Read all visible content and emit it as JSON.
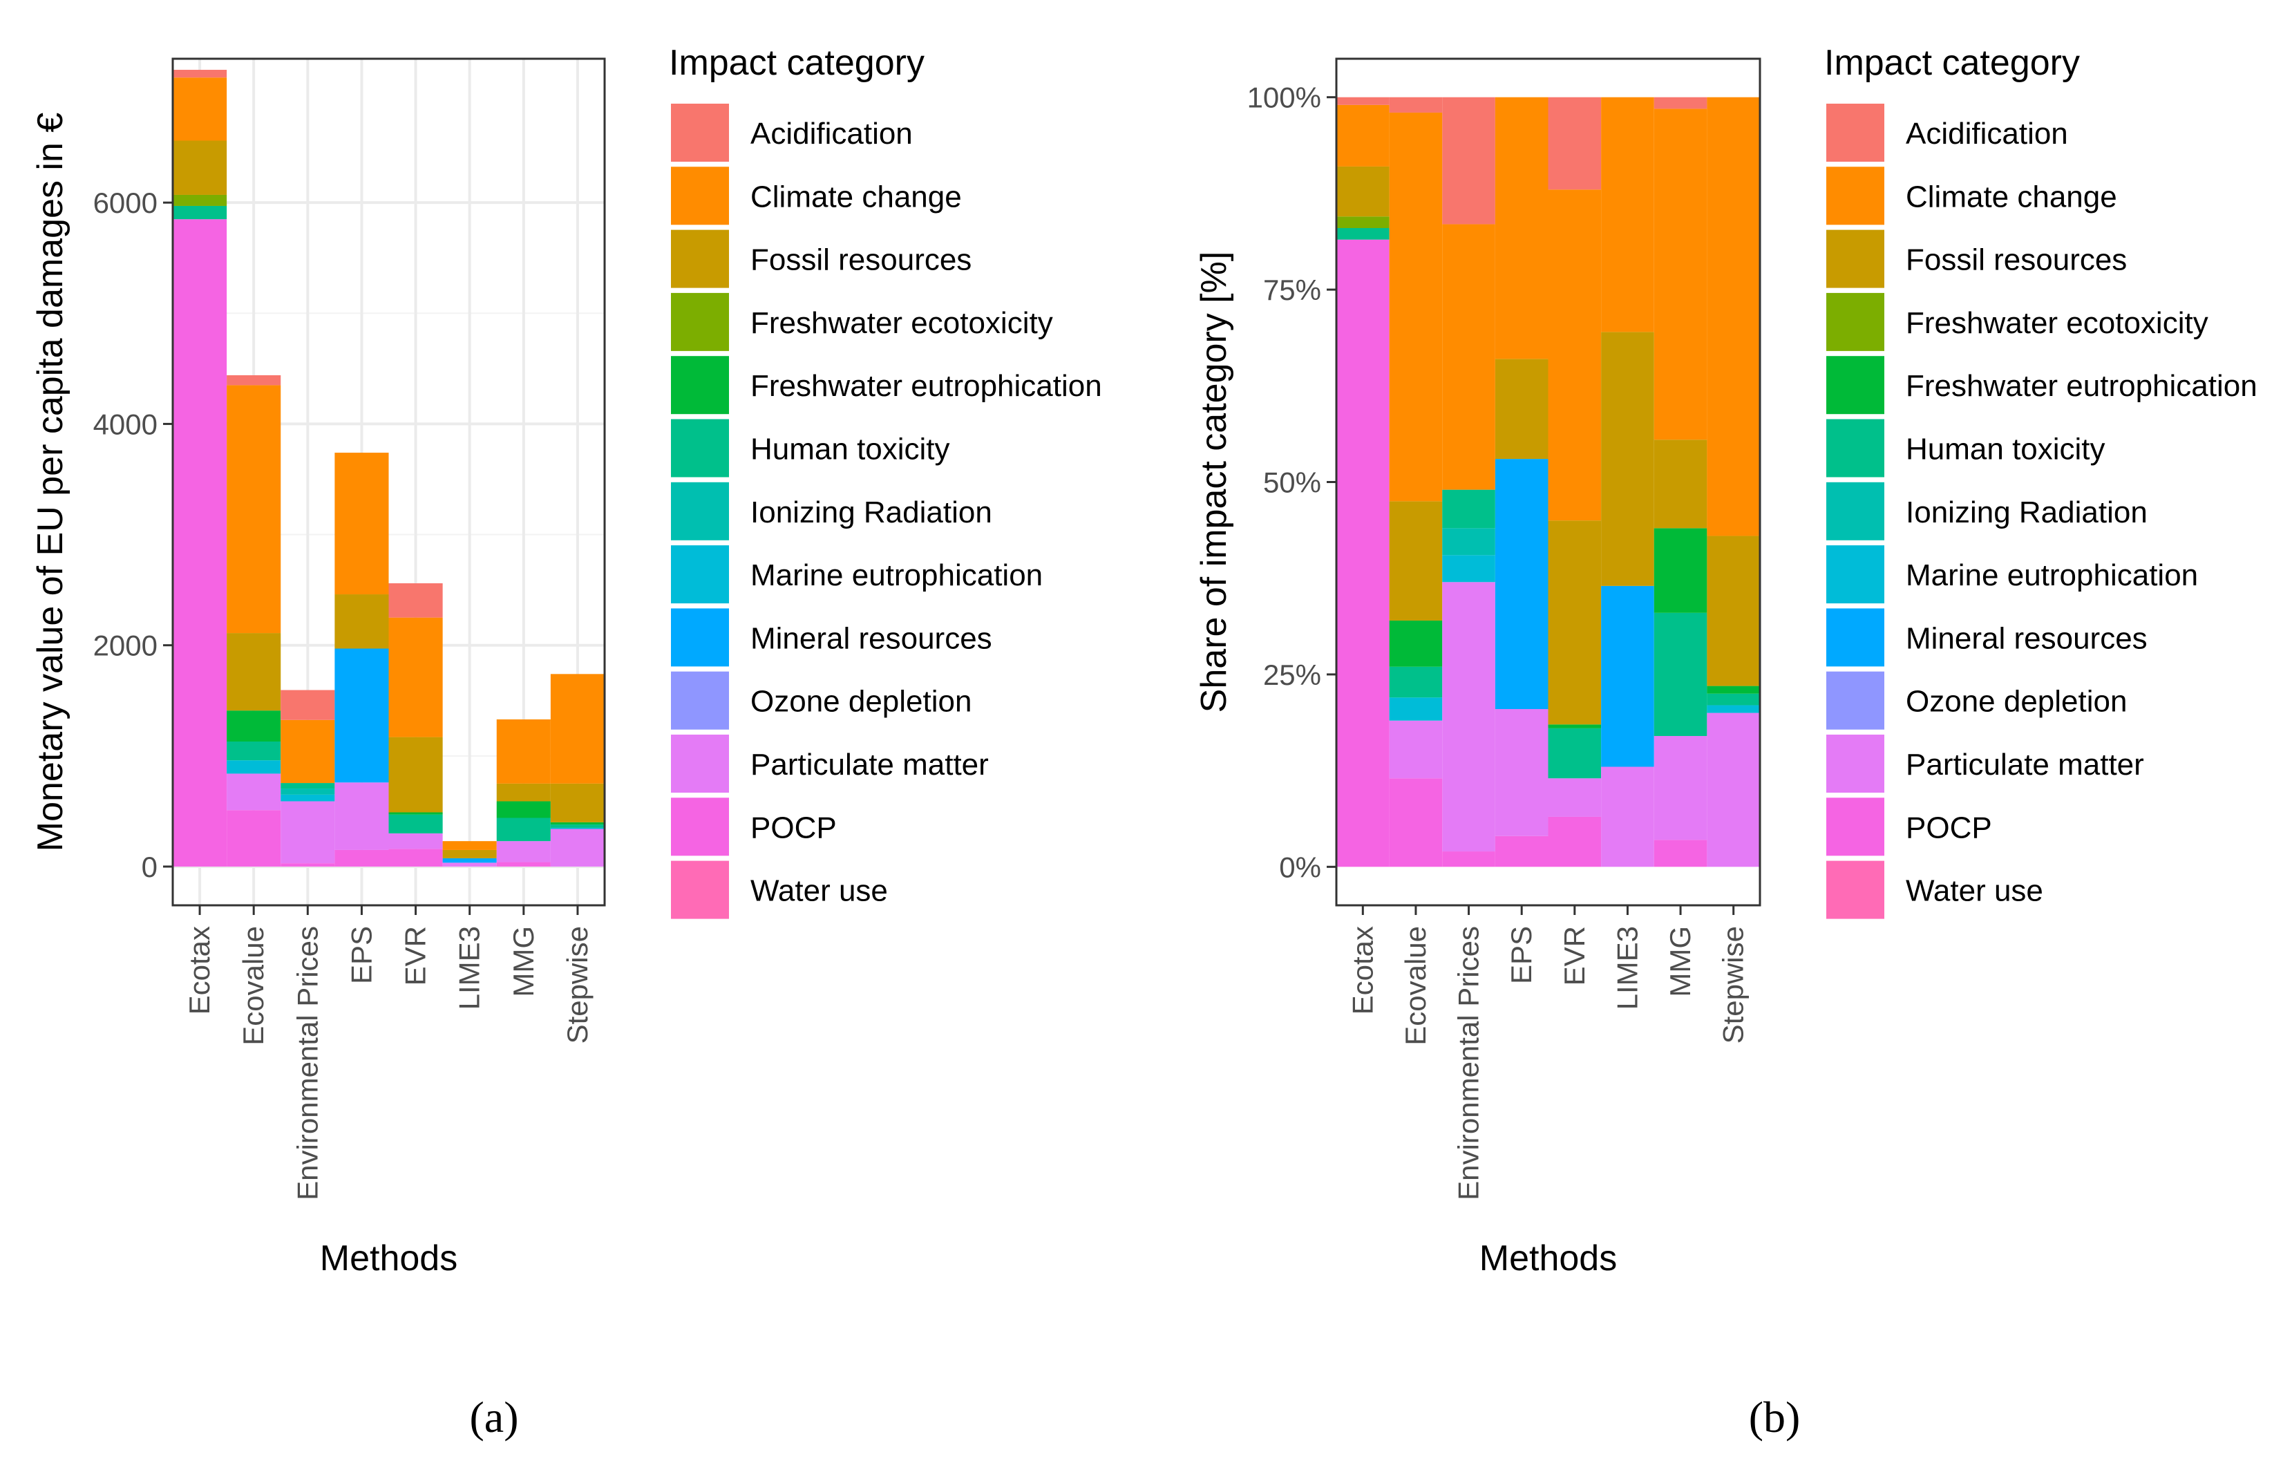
{
  "legend_title": "Impact category",
  "categories": [
    {
      "name": "Acidification",
      "color": "#F8766D"
    },
    {
      "name": "Climate change",
      "color": "#FF8C00"
    },
    {
      "name": "Fossil resources",
      "color": "#C89B00"
    },
    {
      "name": "Freshwater ecotoxicity",
      "color": "#7CAE00"
    },
    {
      "name": "Freshwater eutrophication",
      "color": "#00BA38"
    },
    {
      "name": "Human toxicity",
      "color": "#00C08B"
    },
    {
      "name": "Ionizing Radiation",
      "color": "#00BFB0"
    },
    {
      "name": "Marine eutrophication",
      "color": "#00BCD8"
    },
    {
      "name": "Mineral resources",
      "color": "#00A9FF"
    },
    {
      "name": "Ozone depletion",
      "color": "#8F96FF"
    },
    {
      "name": "Particulate matter",
      "color": "#E47BF6"
    },
    {
      "name": "POCP",
      "color": "#F564E3"
    },
    {
      "name": "Water use",
      "color": "#FF6BB6"
    }
  ],
  "chart_data": [
    {
      "type": "bar",
      "stacked": true,
      "panel_label": "(a)",
      "xlabel": "Methods",
      "ylabel": "Monetary value of EU per capita damages in €",
      "ylim": [
        -350,
        7300
      ],
      "y_ticks": [
        0,
        2000,
        4000,
        6000
      ],
      "y_tick_labels": [
        "0",
        "2000",
        "4000",
        "6000"
      ],
      "grid": true,
      "legend": "right",
      "categories": [
        "Ecotax",
        "Ecovalue",
        "Environmental Prices",
        "EPS",
        "EVR",
        "LIME3",
        "MMG",
        "Stepwise"
      ],
      "series": [
        {
          "name": "Water use",
          "values": [
            0,
            0,
            0,
            0,
            0,
            0,
            0,
            0
          ]
        },
        {
          "name": "POCP",
          "values": [
            5850,
            510,
            30,
            150,
            160,
            0,
            40,
            0
          ]
        },
        {
          "name": "Particulate matter",
          "values": [
            0,
            330,
            560,
            610,
            140,
            35,
            190,
            340
          ]
        },
        {
          "name": "Ozone depletion",
          "values": [
            0,
            0,
            0,
            0,
            0,
            0,
            0,
            0
          ]
        },
        {
          "name": "Mineral resources",
          "values": [
            0,
            0,
            0,
            1210,
            0,
            40,
            0,
            0
          ]
        },
        {
          "name": "Marine eutrophication",
          "values": [
            0,
            120,
            60,
            0,
            0,
            0,
            0,
            10
          ]
        },
        {
          "name": "Ionizing Radiation",
          "values": [
            0,
            0,
            55,
            0,
            0,
            0,
            0,
            0
          ]
        },
        {
          "name": "Human toxicity",
          "values": [
            120,
            170,
            50,
            0,
            170,
            0,
            210,
            30
          ]
        },
        {
          "name": "Freshwater eutrophication",
          "values": [
            0,
            280,
            0,
            0,
            20,
            0,
            150,
            20
          ]
        },
        {
          "name": "Freshwater ecotoxicity",
          "values": [
            100,
            0,
            0,
            0,
            0,
            0,
            0,
            0
          ]
        },
        {
          "name": "Fossil resources",
          "values": [
            490,
            700,
            0,
            490,
            680,
            75,
            160,
            350
          ]
        },
        {
          "name": "Climate change",
          "values": [
            570,
            2240,
            570,
            1280,
            1080,
            80,
            580,
            990
          ]
        },
        {
          "name": "Acidification",
          "values": [
            70,
            90,
            270,
            0,
            310,
            0,
            0,
            0
          ]
        }
      ]
    },
    {
      "type": "bar",
      "stacked": true,
      "panel_label": "(b)",
      "xlabel": "Methods",
      "ylabel": "Share of impact category [%]",
      "ylim": [
        -5,
        105
      ],
      "y_ticks": [
        0,
        25,
        50,
        75,
        100
      ],
      "y_tick_labels": [
        "0%",
        "25%",
        "50%",
        "75%",
        "100%"
      ],
      "grid": false,
      "legend": "right",
      "categories": [
        "Ecotax",
        "Ecovalue",
        "Environmental Prices",
        "EPS",
        "EVR",
        "LIME3",
        "MMG",
        "Stepwise"
      ],
      "series": [
        {
          "name": "Water use",
          "values": [
            0,
            0,
            0,
            0,
            0,
            0,
            0,
            0
          ]
        },
        {
          "name": "POCP",
          "values": [
            81.5,
            11.5,
            2,
            4,
            6.5,
            0,
            3.5,
            0
          ]
        },
        {
          "name": "Particulate matter",
          "values": [
            0,
            7.5,
            35,
            16.5,
            5,
            13,
            13.5,
            20
          ]
        },
        {
          "name": "Ozone depletion",
          "values": [
            0,
            0,
            0,
            0,
            0,
            0,
            0,
            0
          ]
        },
        {
          "name": "Mineral resources",
          "values": [
            0,
            0,
            0,
            32.5,
            0,
            23.5,
            0,
            0
          ]
        },
        {
          "name": "Marine eutrophication",
          "values": [
            0,
            3,
            3.5,
            0,
            0,
            0,
            0,
            1
          ]
        },
        {
          "name": "Ionizing Radiation",
          "values": [
            0,
            0,
            3.5,
            0,
            0,
            0,
            0,
            0
          ]
        },
        {
          "name": "Human toxicity",
          "values": [
            1.5,
            4,
            5,
            0,
            6.5,
            0,
            16,
            1.5
          ]
        },
        {
          "name": "Freshwater eutrophication",
          "values": [
            0,
            6,
            0,
            0,
            0.5,
            0,
            11,
            1
          ]
        },
        {
          "name": "Freshwater ecotoxicity",
          "values": [
            1.5,
            0,
            0,
            0,
            0,
            0,
            0,
            0
          ]
        },
        {
          "name": "Fossil resources",
          "values": [
            6.5,
            15.5,
            0,
            13,
            26.5,
            33,
            11.5,
            19.5
          ]
        },
        {
          "name": "Climate change",
          "values": [
            8,
            50.5,
            34.5,
            34,
            43,
            30.5,
            43,
            57
          ]
        },
        {
          "name": "Acidification",
          "values": [
            1,
            2,
            16.5,
            0,
            12,
            0,
            1.5,
            0
          ]
        }
      ]
    }
  ]
}
